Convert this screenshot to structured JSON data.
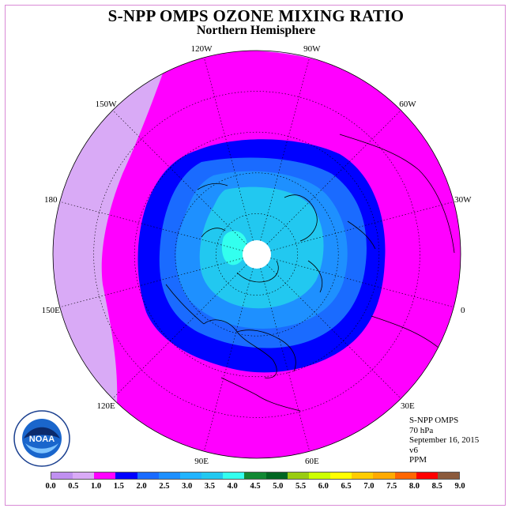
{
  "header": {
    "title": "S-NPP OMPS OZONE MIXING RATIO",
    "subtitle": "Northern Hemisphere"
  },
  "map": {
    "projection": "north-polar-stereographic",
    "longitude_labels": [
      "0",
      "30E",
      "60E",
      "90E",
      "120E",
      "150E",
      "180",
      "150W",
      "120W",
      "90W",
      "60W",
      "30W"
    ],
    "zone_colors": {
      "outer": "#d9aaf6",
      "band_1.0_1.5": "#ff00ff",
      "band_1.5_2.0": "#0000ff",
      "band_2.0_2.5": "#1a6bff",
      "band_2.5_3.0": "#1e90ff",
      "band_3.0_3.5": "#22c8f0",
      "band_3.5_4.0": "#33ffee",
      "polar_no_data": "#ffffff"
    }
  },
  "info": {
    "instrument": "S-NPP OMPS",
    "level": "70 hPa",
    "date": "September 16, 2015",
    "version": "v6",
    "units": "PPM"
  },
  "legend": {
    "colors": [
      "#c090f0",
      "#d9aaf6",
      "#ff00ff",
      "#0000ff",
      "#1a6bff",
      "#1e90ff",
      "#22b4ff",
      "#22c8f0",
      "#33ffee",
      "#118833",
      "#006622",
      "#99cc11",
      "#ccff00",
      "#ffff00",
      "#ffcc00",
      "#ffaa00",
      "#ff6600",
      "#ff0000",
      "#8b5a3c"
    ],
    "ticks": [
      "0.0",
      "0.5",
      "1.0",
      "1.5",
      "2.0",
      "2.5",
      "3.0",
      "3.5",
      "4.0",
      "4.5",
      "5.0",
      "5.5",
      "6.0",
      "6.5",
      "7.0",
      "7.5",
      "8.0",
      "8.5",
      "9.0"
    ]
  },
  "logo": {
    "text": "NOAA",
    "ring_text": "NATIONAL OCEANIC AND ATMOSPHERIC ADMINISTRATION",
    "ring_text_bottom": "U.S. DEPARTMENT OF COMMERCE"
  }
}
